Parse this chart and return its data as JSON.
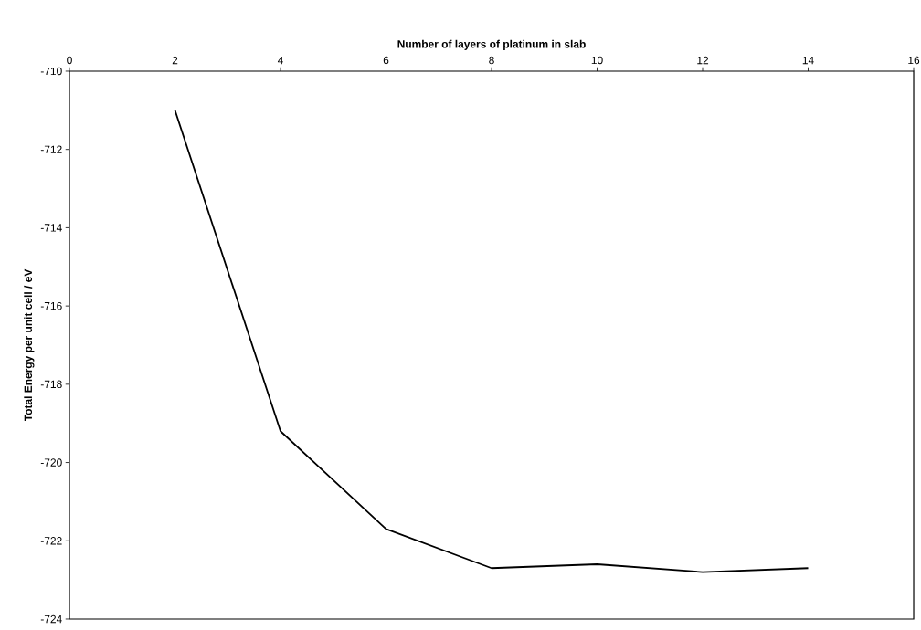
{
  "chart_data": {
    "type": "line",
    "xlabel": "Number of layers of platinum in slab",
    "ylabel": "Total Energy per unit cell / eV",
    "x": [
      2,
      4,
      6,
      8,
      10,
      12,
      14
    ],
    "series": [
      {
        "color": "#000000",
        "values": [
          -711.0,
          -719.2,
          -721.7,
          -722.7,
          -722.6,
          -722.8,
          -722.7
        ]
      }
    ],
    "xlim": [
      0,
      16
    ],
    "xticks": [
      0,
      2,
      4,
      6,
      8,
      10,
      12,
      14,
      16
    ],
    "ylim": [
      -724,
      -710
    ],
    "yticks": [
      -710,
      -712,
      -714,
      -716,
      -718,
      -720,
      -722,
      -724
    ],
    "grid": false,
    "marker": "none",
    "line_style": "solid"
  }
}
